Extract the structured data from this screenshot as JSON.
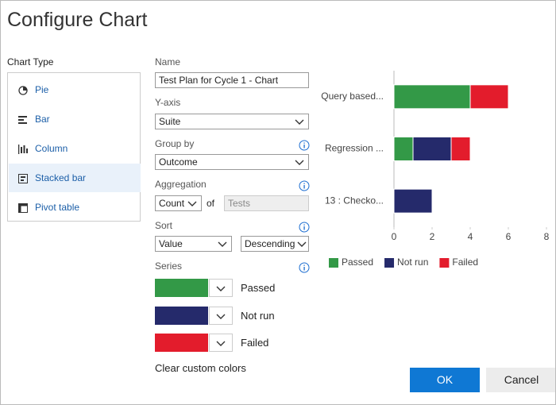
{
  "header": {
    "title": "Configure Chart"
  },
  "chart_type": {
    "label": "Chart Type",
    "options": [
      "Pie",
      "Bar",
      "Column",
      "Stacked bar",
      "Pivot table"
    ]
  },
  "form": {
    "name_label": "Name",
    "name_value": "Test Plan for Cycle 1 - Chart",
    "yaxis_label": "Y-axis",
    "yaxis_value": "Suite",
    "group_by_label": "Group by",
    "group_by_value": "Outcome",
    "aggregation_label": "Aggregation",
    "aggregation_value": "Count",
    "aggregation_of": "of",
    "aggregation_field": "Tests",
    "sort_label": "Sort",
    "sort_by": "Value",
    "sort_order": "Descending",
    "series_label": "Series",
    "clear_link": "Clear custom colors"
  },
  "buttons": {
    "ok": "OK",
    "cancel": "Cancel"
  },
  "chart_data": {
    "type": "bar",
    "orientation": "horizontal",
    "stacked": true,
    "categories": [
      "Query based...",
      "Regression ...",
      "13 : Checko..."
    ],
    "series": [
      {
        "name": "Passed",
        "color": "#339947",
        "values": [
          4,
          1,
          0
        ]
      },
      {
        "name": "Not run",
        "color": "#252a6b",
        "values": [
          0,
          2,
          2
        ]
      },
      {
        "name": "Failed",
        "color": "#e31c2c",
        "values": [
          2,
          1,
          0
        ]
      }
    ],
    "xlim": [
      0,
      8
    ],
    "xticks": [
      0,
      2,
      4,
      6,
      8
    ],
    "legend": "bottom"
  }
}
